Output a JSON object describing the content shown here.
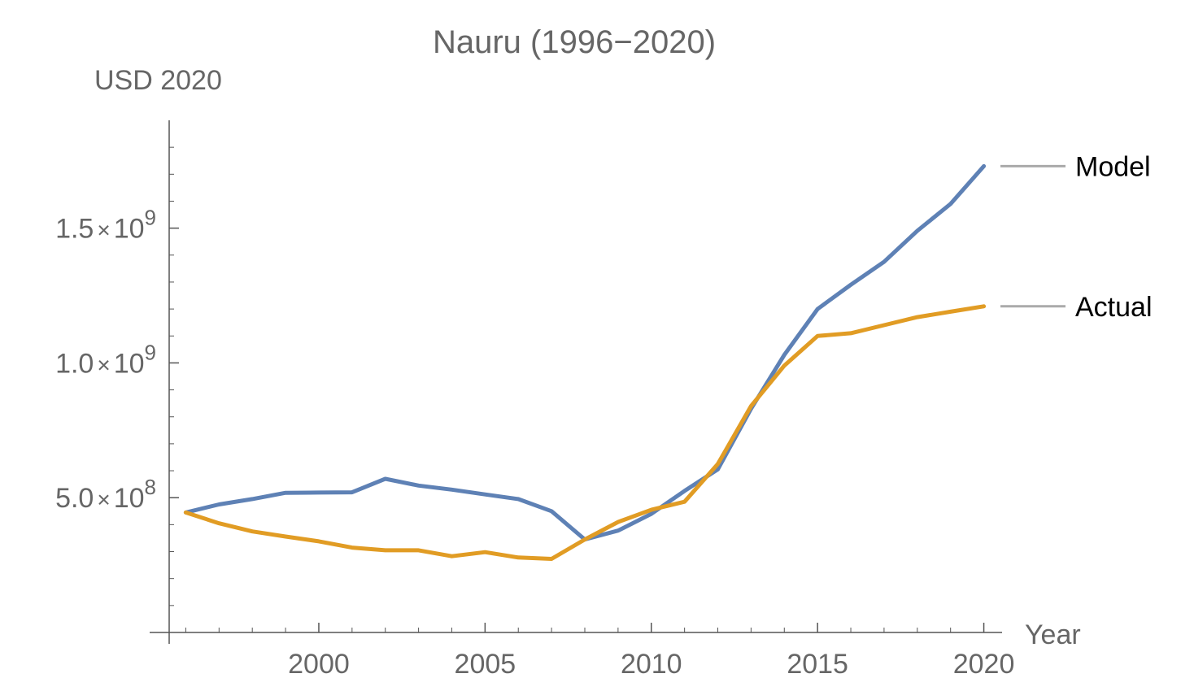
{
  "chart_data": {
    "type": "line",
    "title": "Nauru (1996−2020)",
    "xlabel": "Year",
    "ylabel": "USD 2020",
    "xlim": [
      1995.5,
      2020.5
    ],
    "ylim": [
      0,
      1900000000
    ],
    "x_ticks": [
      2000,
      2005,
      2010,
      2015,
      2020
    ],
    "x_tick_labels": [
      "2000",
      "2005",
      "2010",
      "2015",
      "2020"
    ],
    "y_ticks": [
      500000000,
      1000000000,
      1500000000
    ],
    "y_tick_labels": [
      {
        "mantissa": "5.0",
        "exponent": "8"
      },
      {
        "mantissa": "1.0",
        "exponent": "9"
      },
      {
        "mantissa": "1.5",
        "exponent": "9"
      }
    ],
    "y_tick_times": "×",
    "y_tick_base": "10",
    "x": [
      1996,
      1997,
      1998,
      1999,
      2000,
      2001,
      2002,
      2003,
      2004,
      2005,
      2006,
      2007,
      2008,
      2009,
      2010,
      2011,
      2012,
      2013,
      2014,
      2015,
      2016,
      2017,
      2018,
      2019,
      2020
    ],
    "series": [
      {
        "name": "Model",
        "color": "#5e81b5",
        "values": [
          445000000,
          475000000,
          495000000,
          518000000,
          519000000,
          520000000,
          570000000,
          545000000,
          530000000,
          512000000,
          495000000,
          450000000,
          345000000,
          378000000,
          440000000,
          525000000,
          605000000,
          830000000,
          1030000000,
          1200000000,
          1290000000,
          1375000000,
          1490000000,
          1590000000,
          1730000000
        ]
      },
      {
        "name": "Actual",
        "color": "#e19c24",
        "values": [
          445000000,
          405000000,
          375000000,
          356000000,
          338000000,
          315000000,
          305000000,
          305000000,
          283000000,
          298000000,
          278000000,
          273000000,
          345000000,
          410000000,
          455000000,
          485000000,
          625000000,
          840000000,
          990000000,
          1100000000,
          1110000000,
          1140000000,
          1170000000,
          1190000000,
          1210000000
        ]
      }
    ],
    "legend_position": "right",
    "legend_line_color": "#aaaaaa",
    "grid": false,
    "axis_color": "#555555"
  }
}
